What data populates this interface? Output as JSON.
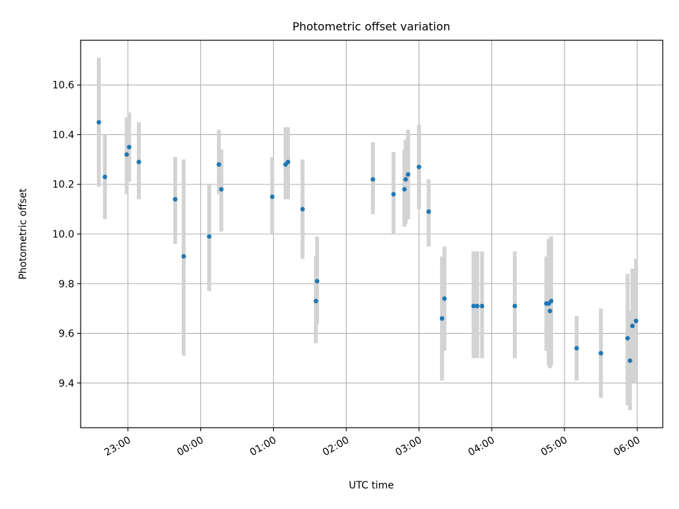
{
  "chart_data": {
    "type": "scatter",
    "title": "Photometric offset variation",
    "xlabel": "UTC time",
    "ylabel": "Photometric offset",
    "x_axis": {
      "kind": "time",
      "range": [
        "22:21",
        "06:21"
      ],
      "ticks": [
        "23:00",
        "00:00",
        "01:00",
        "02:00",
        "03:00",
        "04:00",
        "05:00",
        "06:00"
      ],
      "tick_rotation_deg": 30
    },
    "y_axis": {
      "range": [
        9.22,
        10.78
      ],
      "ticks": [
        9.4,
        9.6,
        9.8,
        10.0,
        10.2,
        10.4,
        10.6
      ],
      "tick_labels": [
        "9.4",
        "9.6",
        "9.8",
        "10.0",
        "10.2",
        "10.4",
        "10.6"
      ]
    },
    "grid": true,
    "colors": {
      "marker": "#1f77b4",
      "error_bar": "#d3d3d3"
    },
    "series": [
      {
        "points": [
          {
            "x": "22:36",
            "y": 10.45,
            "ylow": 10.19,
            "yhigh": 10.71
          },
          {
            "x": "22:41",
            "y": 10.23,
            "ylow": 10.06,
            "yhigh": 10.4
          },
          {
            "x": "22:59",
            "y": 10.32,
            "ylow": 10.16,
            "yhigh": 10.47
          },
          {
            "x": "23:01",
            "y": 10.35,
            "ylow": 10.21,
            "yhigh": 10.49
          },
          {
            "x": "23:09",
            "y": 10.29,
            "ylow": 10.14,
            "yhigh": 10.45
          },
          {
            "x": "23:39",
            "y": 10.14,
            "ylow": 9.96,
            "yhigh": 10.31
          },
          {
            "x": "23:46",
            "y": 9.91,
            "ylow": 9.51,
            "yhigh": 10.3
          },
          {
            "x": "00:07",
            "y": 9.99,
            "ylow": 9.77,
            "yhigh": 10.2
          },
          {
            "x": "00:15",
            "y": 10.28,
            "ylow": 10.16,
            "yhigh": 10.42
          },
          {
            "x": "00:17",
            "y": 10.18,
            "ylow": 10.01,
            "yhigh": 10.34
          },
          {
            "x": "00:59",
            "y": 10.15,
            "ylow": 10.0,
            "yhigh": 10.31
          },
          {
            "x": "01:10",
            "y": 10.28,
            "ylow": 10.14,
            "yhigh": 10.43
          },
          {
            "x": "01:12",
            "y": 10.29,
            "ylow": 10.14,
            "yhigh": 10.43
          },
          {
            "x": "01:24",
            "y": 10.1,
            "ylow": 9.9,
            "yhigh": 10.3
          },
          {
            "x": "01:35",
            "y": 9.73,
            "ylow": 9.56,
            "yhigh": 9.91
          },
          {
            "x": "01:36",
            "y": 9.81,
            "ylow": 9.64,
            "yhigh": 9.99
          },
          {
            "x": "02:22",
            "y": 10.22,
            "ylow": 10.08,
            "yhigh": 10.37
          },
          {
            "x": "02:39",
            "y": 10.16,
            "ylow": 10.0,
            "yhigh": 10.33
          },
          {
            "x": "02:48",
            "y": 10.18,
            "ylow": 10.03,
            "yhigh": 10.34
          },
          {
            "x": "02:49",
            "y": 10.22,
            "ylow": 10.04,
            "yhigh": 10.38
          },
          {
            "x": "02:51",
            "y": 10.24,
            "ylow": 10.06,
            "yhigh": 10.42
          },
          {
            "x": "03:00",
            "y": 10.27,
            "ylow": 10.1,
            "yhigh": 10.44
          },
          {
            "x": "03:08",
            "y": 10.09,
            "ylow": 9.95,
            "yhigh": 10.22
          },
          {
            "x": "03:19",
            "y": 9.66,
            "ylow": 9.41,
            "yhigh": 9.91
          },
          {
            "x": "03:21",
            "y": 9.74,
            "ylow": 9.53,
            "yhigh": 9.95
          },
          {
            "x": "03:45",
            "y": 9.71,
            "ylow": 9.5,
            "yhigh": 9.93
          },
          {
            "x": "03:48",
            "y": 9.71,
            "ylow": 9.5,
            "yhigh": 9.93
          },
          {
            "x": "03:52",
            "y": 9.71,
            "ylow": 9.5,
            "yhigh": 9.93
          },
          {
            "x": "04:19",
            "y": 9.71,
            "ylow": 9.5,
            "yhigh": 9.93
          },
          {
            "x": "04:45",
            "y": 9.72,
            "ylow": 9.53,
            "yhigh": 9.91
          },
          {
            "x": "04:47",
            "y": 9.72,
            "ylow": 9.47,
            "yhigh": 9.98
          },
          {
            "x": "04:48",
            "y": 9.69,
            "ylow": 9.46,
            "yhigh": 9.98
          },
          {
            "x": "04:49",
            "y": 9.73,
            "ylow": 9.47,
            "yhigh": 9.99
          },
          {
            "x": "05:10",
            "y": 9.54,
            "ylow": 9.41,
            "yhigh": 9.67
          },
          {
            "x": "05:30",
            "y": 9.52,
            "ylow": 9.34,
            "yhigh": 9.7
          },
          {
            "x": "05:52",
            "y": 9.58,
            "ylow": 9.31,
            "yhigh": 9.84
          },
          {
            "x": "05:54",
            "y": 9.49,
            "ylow": 9.29,
            "yhigh": 9.69
          },
          {
            "x": "05:56",
            "y": 9.63,
            "ylow": 9.4,
            "yhigh": 9.86
          },
          {
            "x": "05:59",
            "y": 9.65,
            "ylow": 9.4,
            "yhigh": 9.9
          }
        ]
      }
    ]
  }
}
